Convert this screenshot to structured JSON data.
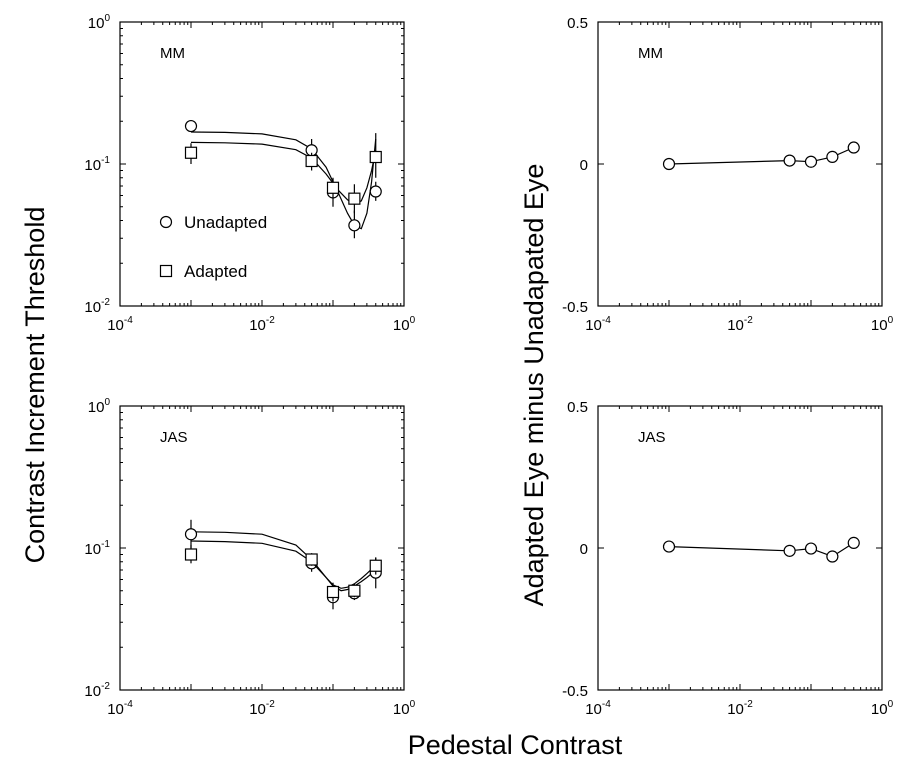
{
  "figure": {
    "xlabel": "Pedestal Contrast",
    "ylabel_left": "Contrast Increment Threshold",
    "ylabel_right": "Adapted Eye minus Unadapated Eye"
  },
  "chart_data": [
    {
      "id": "mm-thresholds",
      "type": "scatter",
      "panel_label": "MM",
      "x_scale": "log",
      "y_scale": "log",
      "xlim": [
        0.0001,
        1
      ],
      "ylim": [
        0.01,
        1
      ],
      "x_ticks": [
        {
          "base": "10",
          "exp": "-4"
        },
        {
          "base": "10",
          "exp": "-2"
        },
        {
          "base": "10",
          "exp": "0"
        }
      ],
      "y_ticks": [
        {
          "base": "10",
          "exp": "-2"
        },
        {
          "base": "10",
          "exp": "-1"
        },
        {
          "base": "10",
          "exp": "0"
        }
      ],
      "legend": {
        "placement": "lower-left",
        "entries": [
          {
            "label": "Unadapted",
            "marker": "circle"
          },
          {
            "label": "Adapted",
            "marker": "square"
          }
        ]
      },
      "series": [
        {
          "name": "Unadapted",
          "marker": "circle",
          "x": [
            0.001,
            0.05,
            0.1,
            0.2,
            0.4
          ],
          "y": [
            0.185,
            0.125,
            0.063,
            0.037,
            0.064
          ],
          "err_low": [
            0.175,
            0.105,
            0.05,
            0.03,
            0.055
          ],
          "err_high": [
            0.195,
            0.15,
            0.08,
            0.047,
            0.075
          ],
          "fit": {
            "x": [
              0.001,
              0.003,
              0.01,
              0.03,
              0.05,
              0.08,
              0.12,
              0.16,
              0.2,
              0.25,
              0.3,
              0.35,
              0.4
            ],
            "y": [
              0.168,
              0.167,
              0.163,
              0.148,
              0.128,
              0.095,
              0.062,
              0.045,
              0.037,
              0.035,
              0.045,
              0.075,
              0.15
            ]
          }
        },
        {
          "name": "Adapted",
          "marker": "square",
          "x": [
            0.001,
            0.05,
            0.1,
            0.2,
            0.4
          ],
          "y": [
            0.12,
            0.105,
            0.068,
            0.057,
            0.112
          ],
          "err_low": [
            0.1,
            0.09,
            0.058,
            0.045,
            0.08
          ],
          "err_high": [
            0.14,
            0.12,
            0.078,
            0.072,
            0.165
          ],
          "fit": {
            "x": [
              0.001,
              0.003,
              0.01,
              0.03,
              0.05,
              0.08,
              0.12,
              0.16,
              0.2,
              0.25,
              0.3,
              0.35,
              0.4
            ],
            "y": [
              0.142,
              0.141,
              0.138,
              0.126,
              0.11,
              0.085,
              0.065,
              0.056,
              0.052,
              0.055,
              0.068,
              0.09,
              0.125
            ]
          }
        }
      ]
    },
    {
      "id": "mm-difference",
      "type": "line",
      "panel_label": "MM",
      "x_scale": "log",
      "y_scale": "linear",
      "xlim": [
        0.0001,
        1
      ],
      "ylim": [
        -0.5,
        0.5
      ],
      "x_ticks": [
        {
          "base": "10",
          "exp": "-4"
        },
        {
          "base": "10",
          "exp": "-2"
        },
        {
          "base": "10",
          "exp": "0"
        }
      ],
      "y_ticks": [
        "-0.5",
        "0",
        "0.5"
      ],
      "series": [
        {
          "name": "",
          "marker": "circle",
          "x": [
            0.001,
            0.05,
            0.1,
            0.2,
            0.4
          ],
          "y": [
            0.0,
            0.012,
            0.008,
            0.025,
            0.058
          ]
        }
      ]
    },
    {
      "id": "jas-thresholds",
      "type": "scatter",
      "panel_label": "JAS",
      "x_scale": "log",
      "y_scale": "log",
      "xlim": [
        0.0001,
        1
      ],
      "ylim": [
        0.01,
        1
      ],
      "x_ticks": [
        {
          "base": "10",
          "exp": "-4"
        },
        {
          "base": "10",
          "exp": "-2"
        },
        {
          "base": "10",
          "exp": "0"
        }
      ],
      "y_ticks": [
        {
          "base": "10",
          "exp": "-2"
        },
        {
          "base": "10",
          "exp": "-1"
        },
        {
          "base": "10",
          "exp": "0"
        }
      ],
      "series": [
        {
          "name": "Unadapted",
          "marker": "circle",
          "x": [
            0.001,
            0.05,
            0.1,
            0.2,
            0.4
          ],
          "y": [
            0.125,
            0.078,
            0.045,
            0.048,
            0.067
          ],
          "err_low": [
            0.1,
            0.068,
            0.037,
            0.043,
            0.052
          ],
          "err_high": [
            0.158,
            0.09,
            0.055,
            0.055,
            0.086
          ],
          "fit": {
            "x": [
              0.001,
              0.003,
              0.01,
              0.03,
              0.05,
              0.08,
              0.1,
              0.13,
              0.16,
              0.2,
              0.25,
              0.3,
              0.35,
              0.4
            ],
            "y": [
              0.13,
              0.129,
              0.125,
              0.105,
              0.083,
              0.062,
              0.054,
              0.05,
              0.051,
              0.054,
              0.058,
              0.062,
              0.066,
              0.07
            ]
          }
        },
        {
          "name": "Adapted",
          "marker": "square",
          "x": [
            0.001,
            0.05,
            0.1,
            0.2,
            0.4
          ],
          "y": [
            0.09,
            0.083,
            0.049,
            0.05,
            0.075
          ],
          "err_low": [
            0.078,
            0.075,
            0.042,
            0.045,
            0.065
          ],
          "err_high": [
            0.105,
            0.092,
            0.057,
            0.056,
            0.085
          ],
          "fit": {
            "x": [
              0.001,
              0.003,
              0.01,
              0.03,
              0.05,
              0.08,
              0.1,
              0.13,
              0.16,
              0.2,
              0.25,
              0.3,
              0.35,
              0.4
            ],
            "y": [
              0.112,
              0.111,
              0.108,
              0.095,
              0.08,
              0.062,
              0.055,
              0.052,
              0.053,
              0.056,
              0.061,
              0.066,
              0.071,
              0.076
            ]
          }
        }
      ]
    },
    {
      "id": "jas-difference",
      "type": "line",
      "panel_label": "JAS",
      "x_scale": "log",
      "y_scale": "linear",
      "xlim": [
        0.0001,
        1
      ],
      "ylim": [
        -0.5,
        0.5
      ],
      "x_ticks": [
        {
          "base": "10",
          "exp": "-4"
        },
        {
          "base": "10",
          "exp": "-2"
        },
        {
          "base": "10",
          "exp": "0"
        }
      ],
      "y_ticks": [
        "-0.5",
        "0",
        "0.5"
      ],
      "series": [
        {
          "name": "",
          "marker": "circle",
          "x": [
            0.001,
            0.05,
            0.1,
            0.2,
            0.4
          ],
          "y": [
            0.005,
            -0.01,
            -0.002,
            -0.03,
            0.018
          ]
        }
      ]
    }
  ]
}
